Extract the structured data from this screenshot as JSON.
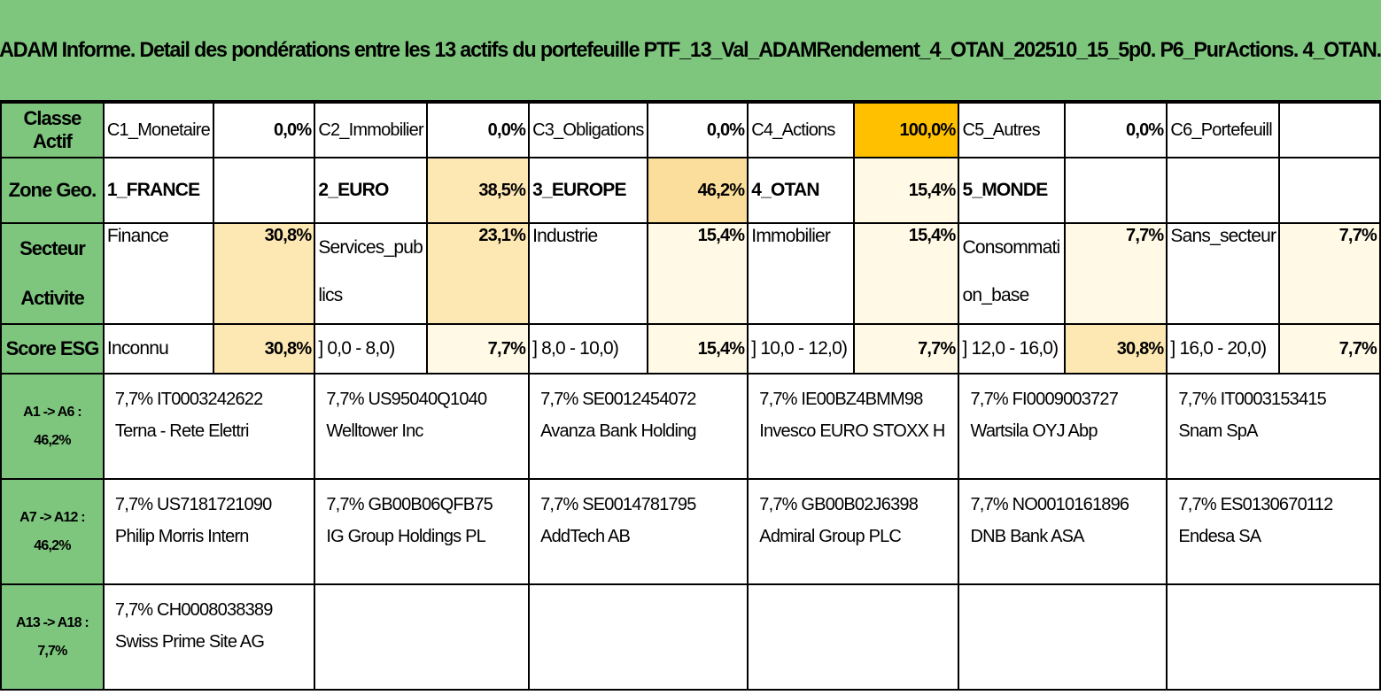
{
  "title": "ADAM Informe. Detail des pondérations entre les 13 actifs du portefeuille PTF_13_Val_ADAMRendement_4_OTAN_202510_15_5p0. P6_PurActions. 4_OTAN.",
  "rows": {
    "classe": {
      "header": "Classe Actif",
      "cells": [
        {
          "label": "C1_Monetaire",
          "value": "0,0%"
        },
        {
          "label": "C2_Immobilier",
          "value": "0,0%"
        },
        {
          "label": "C3_Obligations",
          "value": "0,0%"
        },
        {
          "label": "C4_Actions",
          "value": "100,0%"
        },
        {
          "label": "C5_Autres",
          "value": "0,0%"
        },
        {
          "label": "C6_Portefeuill",
          "value": ""
        }
      ]
    },
    "zone": {
      "header": "Zone Geo.",
      "cells": [
        {
          "label": "1_FRANCE",
          "value": ""
        },
        {
          "label": "2_EURO",
          "value": "38,5%"
        },
        {
          "label": "3_EUROPE",
          "value": "46,2%"
        },
        {
          "label": "4_OTAN",
          "value": "15,4%"
        },
        {
          "label": "5_MONDE",
          "value": ""
        },
        {
          "label": "",
          "value": ""
        }
      ]
    },
    "secteur": {
      "header_line1": "Secteur",
      "header_line2": "Activite",
      "cells": [
        {
          "label_line1": "Finance",
          "label_line2": "",
          "value": "30,8%"
        },
        {
          "label_line1": "Services_pub",
          "label_line2": "lics",
          "value": "23,1%"
        },
        {
          "label_line1": "Industrie",
          "label_line2": "",
          "value": "15,4%"
        },
        {
          "label_line1": "Immobilier",
          "label_line2": "",
          "value": "15,4%"
        },
        {
          "label_line1": "Consommati",
          "label_line2": "on_base",
          "value": "7,7%"
        },
        {
          "label_line1": "Sans_secteur",
          "label_line2": "",
          "value": "7,7%"
        }
      ]
    },
    "esg": {
      "header": "Score ESG",
      "cells": [
        {
          "label": "Inconnu",
          "value": "30,8%"
        },
        {
          "label": "] 0,0 - 8,0)",
          "value": "7,7%"
        },
        {
          "label": "] 8,0 - 10,0)",
          "value": "15,4%"
        },
        {
          "label": "] 10,0 - 12,0)",
          "value": "7,7%"
        },
        {
          "label": "] 12,0 - 16,0)",
          "value": "30,8%"
        },
        {
          "label": "] 16,0 - 20,0)",
          "value": "7,7%"
        }
      ]
    }
  },
  "asset_groups": [
    {
      "header_line1": "A1 -> A6 :",
      "header_line2": "46,2%",
      "assets": [
        {
          "line1": "7,7% IT0003242622",
          "line2": "Terna - Rete Elettri"
        },
        {
          "line1": "7,7% US95040Q1040",
          "line2": "Welltower Inc"
        },
        {
          "line1": "7,7% SE0012454072",
          "line2": "Avanza Bank Holding"
        },
        {
          "line1": "7,7% IE00BZ4BMM98",
          "line2": "Invesco EURO STOXX H"
        },
        {
          "line1": "7,7% FI0009003727",
          "line2": "Wartsila OYJ Abp"
        },
        {
          "line1": "7,7% IT0003153415",
          "line2": "Snam SpA"
        }
      ]
    },
    {
      "header_line1": "A7 -> A12 :",
      "header_line2": "46,2%",
      "assets": [
        {
          "line1": "7,7% US7181721090",
          "line2": "Philip Morris Intern"
        },
        {
          "line1": "7,7% GB00B06QFB75",
          "line2": "IG Group Holdings PL"
        },
        {
          "line1": "7,7% SE0014781795",
          "line2": "AddTech AB"
        },
        {
          "line1": "7,7% GB00B02J6398",
          "line2": "Admiral Group PLC"
        },
        {
          "line1": "7,7% NO0010161896",
          "line2": "DNB Bank ASA"
        },
        {
          "line1": "7,7% ES0130670112",
          "line2": "Endesa SA"
        }
      ]
    },
    {
      "header_line1": "A13 -> A18 :",
      "header_line2": "7,7%",
      "assets": [
        {
          "line1": "7,7% CH0008038389",
          "line2": "Swiss Prime Site AG"
        },
        {
          "line1": "",
          "line2": ""
        },
        {
          "line1": "",
          "line2": ""
        },
        {
          "line1": "",
          "line2": ""
        },
        {
          "line1": "",
          "line2": ""
        },
        {
          "line1": "",
          "line2": ""
        }
      ]
    }
  ],
  "colors": {
    "header_green": "#7ec67e",
    "weight_max": "#ffc000",
    "weight_high": "#fcde9c",
    "weight_mid": "#fde8b4",
    "weight_low": "#fff9e6"
  }
}
